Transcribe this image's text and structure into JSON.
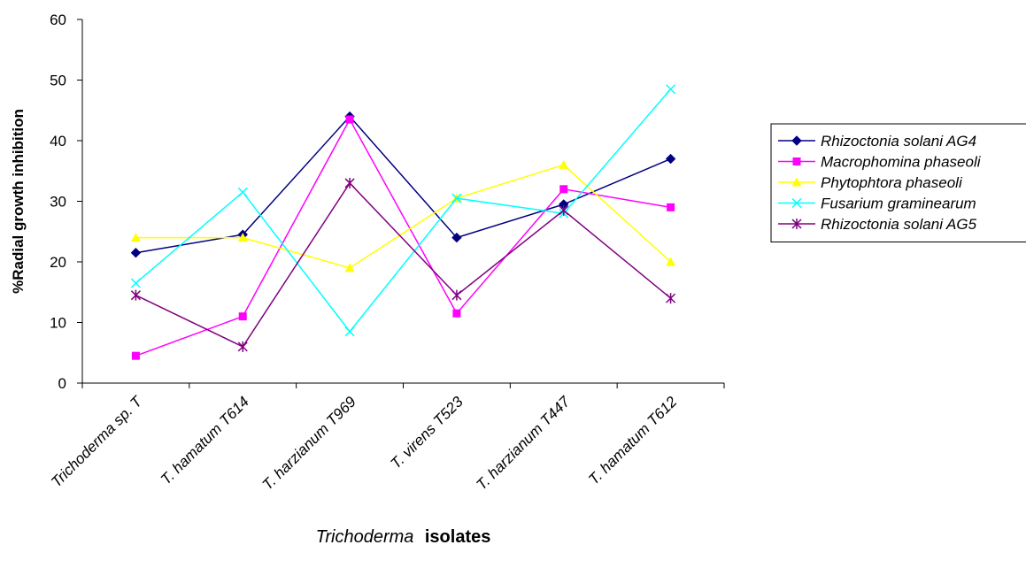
{
  "chart_data": {
    "type": "line",
    "categories": [
      "Trichoderma sp. T",
      "T. hamatum T614",
      "T. harzianum T969",
      "T. virens T523",
      "T. harzianum T447",
      "T. hamatum T612"
    ],
    "ylabel": "%Radial growth inhibition",
    "xlabel_italic": "Trichoderma",
    "xlabel_bold": "isolates",
    "ylim": [
      0,
      60
    ],
    "yticks": [
      "0",
      "10",
      "20",
      "30",
      "40",
      "50",
      "60"
    ],
    "grid": false,
    "legend_position": "right",
    "series": [
      {
        "name": "Rhizoctonia solani AG4",
        "color": "#000080",
        "marker": "diamond",
        "values": [
          21.5,
          24.5,
          44,
          24,
          29.5,
          37
        ]
      },
      {
        "name": "Macrophomina phaseoli",
        "color": "#ff00ff",
        "marker": "square",
        "values": [
          4.5,
          11,
          43.5,
          11.5,
          32,
          29
        ]
      },
      {
        "name": "Phytophtora phaseoli",
        "color": "#ffff00",
        "marker": "triangle",
        "values": [
          24,
          24,
          19,
          30.5,
          36,
          20
        ]
      },
      {
        "name": "Fusarium graminearum",
        "color": "#00ffff",
        "marker": "x",
        "values": [
          16.5,
          31.5,
          8.5,
          30.5,
          28,
          48.5
        ]
      },
      {
        "name": "Rhizoctonia solani AG5",
        "color": "#800080",
        "marker": "star",
        "values": [
          14.5,
          6,
          33,
          14.5,
          28.5,
          14
        ]
      }
    ]
  }
}
